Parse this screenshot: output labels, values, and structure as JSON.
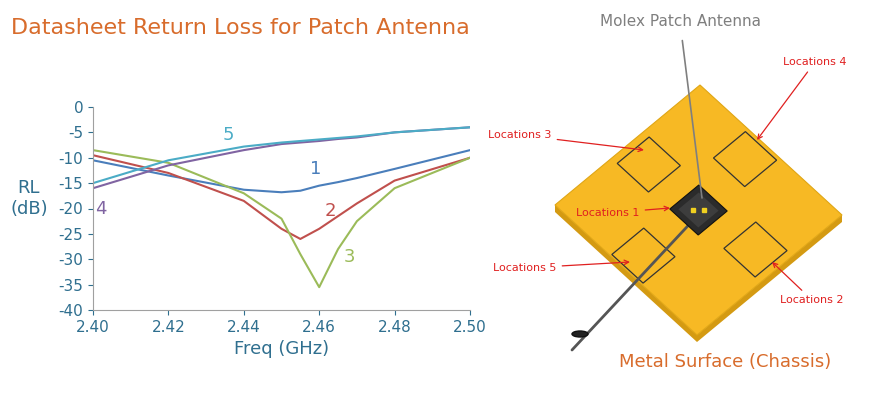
{
  "title": "Datasheet Return Loss for Patch Antenna",
  "chart_data": {
    "type": "line",
    "xlabel": "Freq (GHz)",
    "ylabel": "RL\n(dB)",
    "x": [
      2.4,
      2.42,
      2.44,
      2.45,
      2.455,
      2.46,
      2.465,
      2.47,
      2.48,
      2.5
    ],
    "series": [
      {
        "name": "1",
        "color": "#4a7ebb",
        "values": [
          -10.5,
          -13.5,
          -16.3,
          -16.8,
          -16.5,
          -15.5,
          -14.8,
          -14,
          -12.2,
          -8.5
        ]
      },
      {
        "name": "2",
        "color": "#c0504d",
        "values": [
          -9.5,
          -13,
          -18.5,
          -24,
          -26,
          -24,
          -21.5,
          -19,
          -14.5,
          -10
        ]
      },
      {
        "name": "3",
        "color": "#9bbb59",
        "values": [
          -8.5,
          -11,
          -17,
          -22,
          -29,
          -35.5,
          -28,
          -22.5,
          -16,
          -10
        ]
      },
      {
        "name": "4",
        "color": "#8064a2",
        "values": [
          -16,
          -11.5,
          -8.5,
          -7.3,
          -7,
          -6.7,
          -6.3,
          -6,
          -5,
          -4
        ]
      },
      {
        "name": "5",
        "color": "#4bacc6",
        "values": [
          -15,
          -10.5,
          -7.8,
          -7,
          -6.7,
          -6.4,
          -6.1,
          -5.8,
          -5,
          -4
        ]
      }
    ],
    "xlim": [
      2.4,
      2.5
    ],
    "xticks": [
      {
        "value": 2.4,
        "label": "2.40"
      },
      2.42,
      2.44,
      2.46,
      2.48,
      {
        "value": 2.5,
        "label": "2.50"
      }
    ],
    "ylim": [
      -40,
      0
    ],
    "yticks": [
      -40,
      -35,
      -30,
      -25,
      -20,
      -15,
      -10,
      -5,
      0
    ],
    "grid": false
  },
  "diagram": {
    "antenna_label": "Molex Patch Antenna",
    "surface_label": "Metal Surface (Chassis)",
    "locations": [
      "Locations 1",
      "Locations 2",
      "Locations 3",
      "Locations 4",
      "Locations 5"
    ]
  }
}
